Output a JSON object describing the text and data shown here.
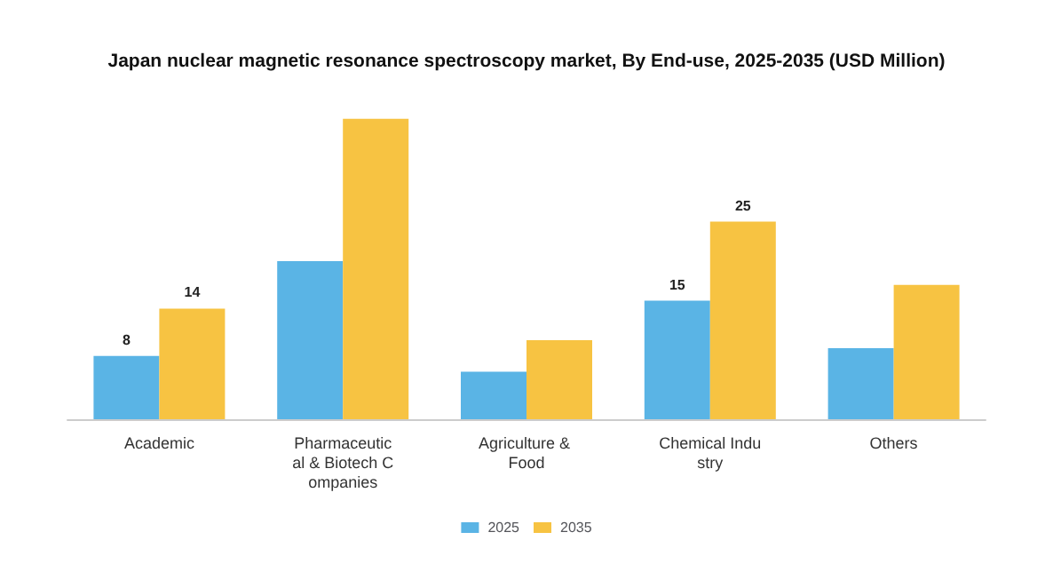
{
  "chart_data": {
    "type": "bar",
    "title": "Japan nuclear magnetic resonance spectroscopy market, By End-use, 2025-2035 (USD Million)",
    "categories": [
      "Academic",
      "Pharmaceutical & Biotech Companies",
      "Agriculture & Food",
      "Chemical Industry",
      "Others"
    ],
    "series": [
      {
        "name": "2025",
        "color": "#5ab4e5",
        "values": [
          8,
          20,
          6,
          15,
          9
        ],
        "value_labels": [
          "8",
          null,
          null,
          "15",
          null
        ]
      },
      {
        "name": "2035",
        "color": "#f7c342",
        "values": [
          14,
          38,
          10,
          25,
          17
        ],
        "value_labels": [
          "14",
          null,
          null,
          "25",
          null
        ]
      }
    ],
    "legend": "bottom",
    "grid": false
  }
}
